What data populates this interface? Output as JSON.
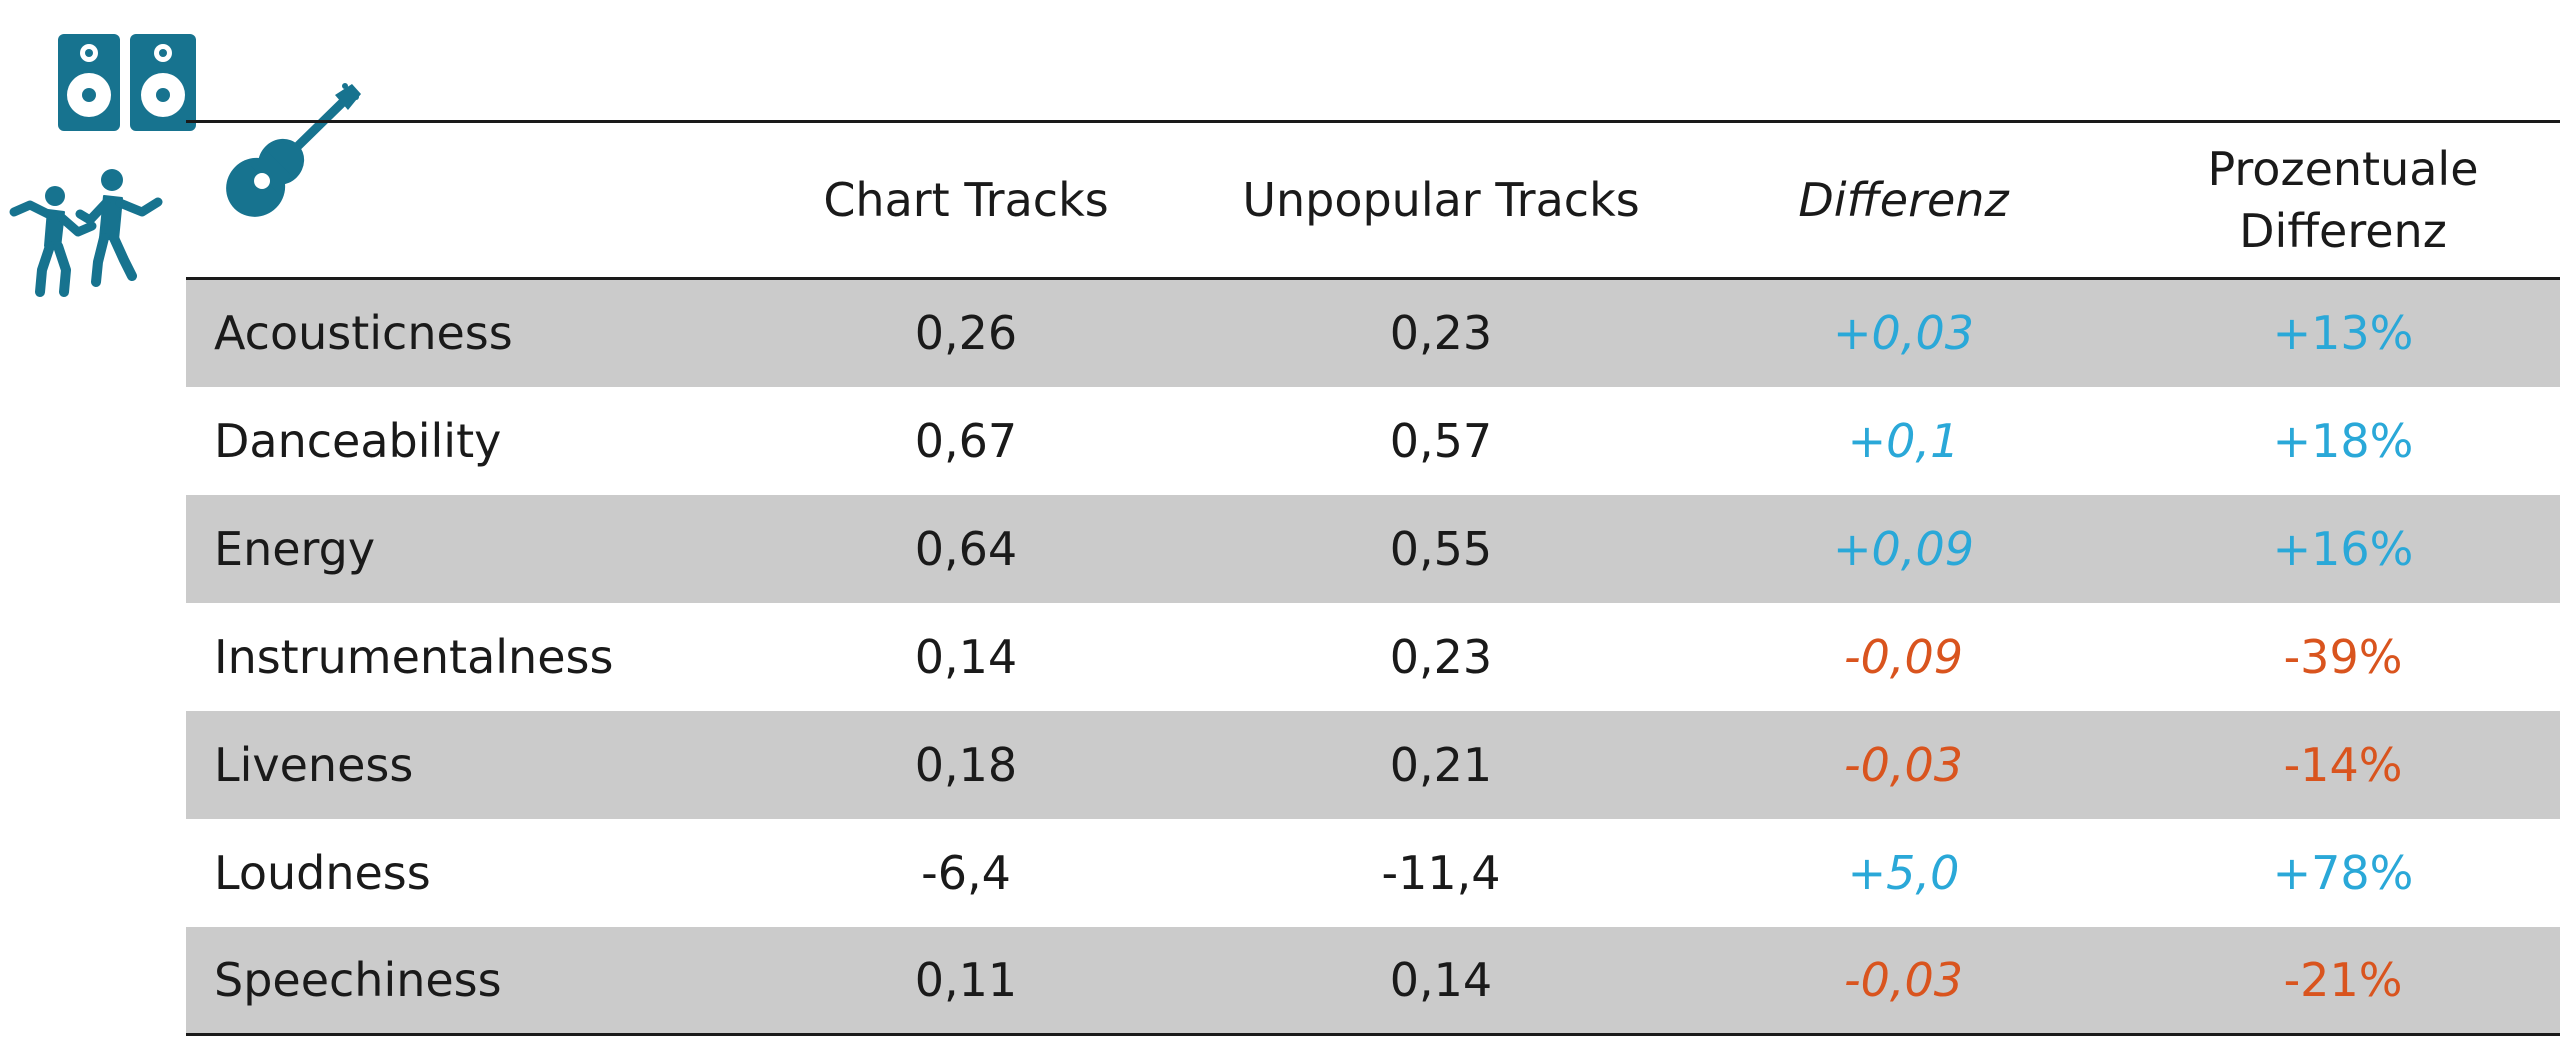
{
  "colors": {
    "positive": "#2aa8d8",
    "negative": "#d9541e",
    "icon": "#17738f",
    "stripe": "#cbcbcb"
  },
  "icons": [
    "speakers-icon",
    "guitar-icon",
    "dancers-icon"
  ],
  "chart_data": {
    "type": "table",
    "columns": [
      "",
      "Chart Tracks",
      "Unpopular Tracks",
      "Differenz",
      "Prozentuale Differenz"
    ],
    "rows": [
      {
        "feature": "Acousticness",
        "chart": "0,26",
        "unpopular": "0,23",
        "diff": "+0,03",
        "pct": "+13%",
        "sign": "pos"
      },
      {
        "feature": "Danceability",
        "chart": "0,67",
        "unpopular": "0,57",
        "diff": "+0,1",
        "pct": "+18%",
        "sign": "pos"
      },
      {
        "feature": "Energy",
        "chart": "0,64",
        "unpopular": "0,55",
        "diff": "+0,09",
        "pct": "+16%",
        "sign": "pos"
      },
      {
        "feature": "Instrumentalness",
        "chart": "0,14",
        "unpopular": "0,23",
        "diff": "-0,09",
        "pct": "-39%",
        "sign": "neg"
      },
      {
        "feature": "Liveness",
        "chart": "0,18",
        "unpopular": "0,21",
        "diff": "-0,03",
        "pct": "-14%",
        "sign": "neg"
      },
      {
        "feature": "Loudness",
        "chart": "-6,4",
        "unpopular": "-11,4",
        "diff": "+5,0",
        "pct": "+78%",
        "sign": "pos"
      },
      {
        "feature": "Speechiness",
        "chart": "0,11",
        "unpopular": "0,14",
        "diff": "-0,03",
        "pct": "-21%",
        "sign": "neg"
      }
    ]
  }
}
